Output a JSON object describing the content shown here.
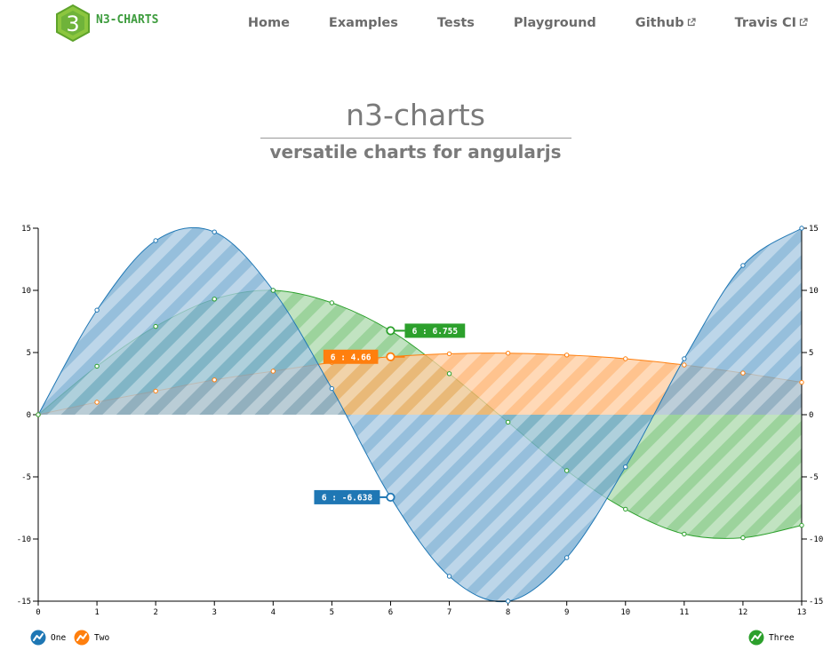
{
  "brand": {
    "name": "N3-CHARTS",
    "logo_glyph": "3"
  },
  "nav": {
    "items": [
      {
        "label": "Home",
        "external": false
      },
      {
        "label": "Examples",
        "external": false
      },
      {
        "label": "Tests",
        "external": false
      },
      {
        "label": "Playground",
        "external": false
      },
      {
        "label": "Github",
        "external": true
      },
      {
        "label": "Travis CI",
        "external": true
      }
    ]
  },
  "hero": {
    "title": "n3-charts",
    "subtitle": "versatile charts for angularjs"
  },
  "colors": {
    "one": "#1f77b4",
    "two": "#ff7f0e",
    "three": "#2ca02c",
    "brand": "#3d9c3d",
    "nav_text": "#6b6b6b"
  },
  "chart_data": {
    "type": "area",
    "x": [
      0,
      1,
      2,
      3,
      4,
      5,
      6,
      7,
      8,
      9,
      10,
      11,
      12,
      13
    ],
    "xlim": [
      0,
      13
    ],
    "ylim": [
      -15,
      15
    ],
    "yticks": [
      -15,
      -10,
      -5,
      0,
      5,
      10,
      15
    ],
    "fill_pattern": "diagonal-stripes",
    "series": [
      {
        "name": "One",
        "axis": "left",
        "color": "#1f77b4",
        "values": [
          0,
          8.41,
          14.0,
          14.7,
          10.0,
          2.1,
          -6.638,
          -13.0,
          -15.0,
          -11.5,
          -4.2,
          4.5,
          12.0,
          15.0
        ]
      },
      {
        "name": "Two",
        "axis": "left",
        "color": "#ff7f0e",
        "values": [
          0,
          1.0,
          1.9,
          2.8,
          3.5,
          4.2,
          4.66,
          4.9,
          4.95,
          4.8,
          4.5,
          4.0,
          3.35,
          2.6
        ]
      },
      {
        "name": "Three",
        "axis": "right",
        "color": "#2ca02c",
        "values": [
          0,
          3.9,
          7.1,
          9.3,
          10.0,
          9.0,
          6.755,
          3.3,
          -0.6,
          -4.5,
          -7.6,
          -9.6,
          -9.9,
          -8.9
        ]
      }
    ],
    "tooltips": [
      {
        "series": "Three",
        "text": "6 : 6.755"
      },
      {
        "series": "Two",
        "text": "6 : 4.66"
      },
      {
        "series": "One",
        "text": "6 : -6.638"
      }
    ],
    "legend": {
      "left": [
        "One",
        "Two"
      ],
      "right": [
        "Three"
      ]
    }
  }
}
